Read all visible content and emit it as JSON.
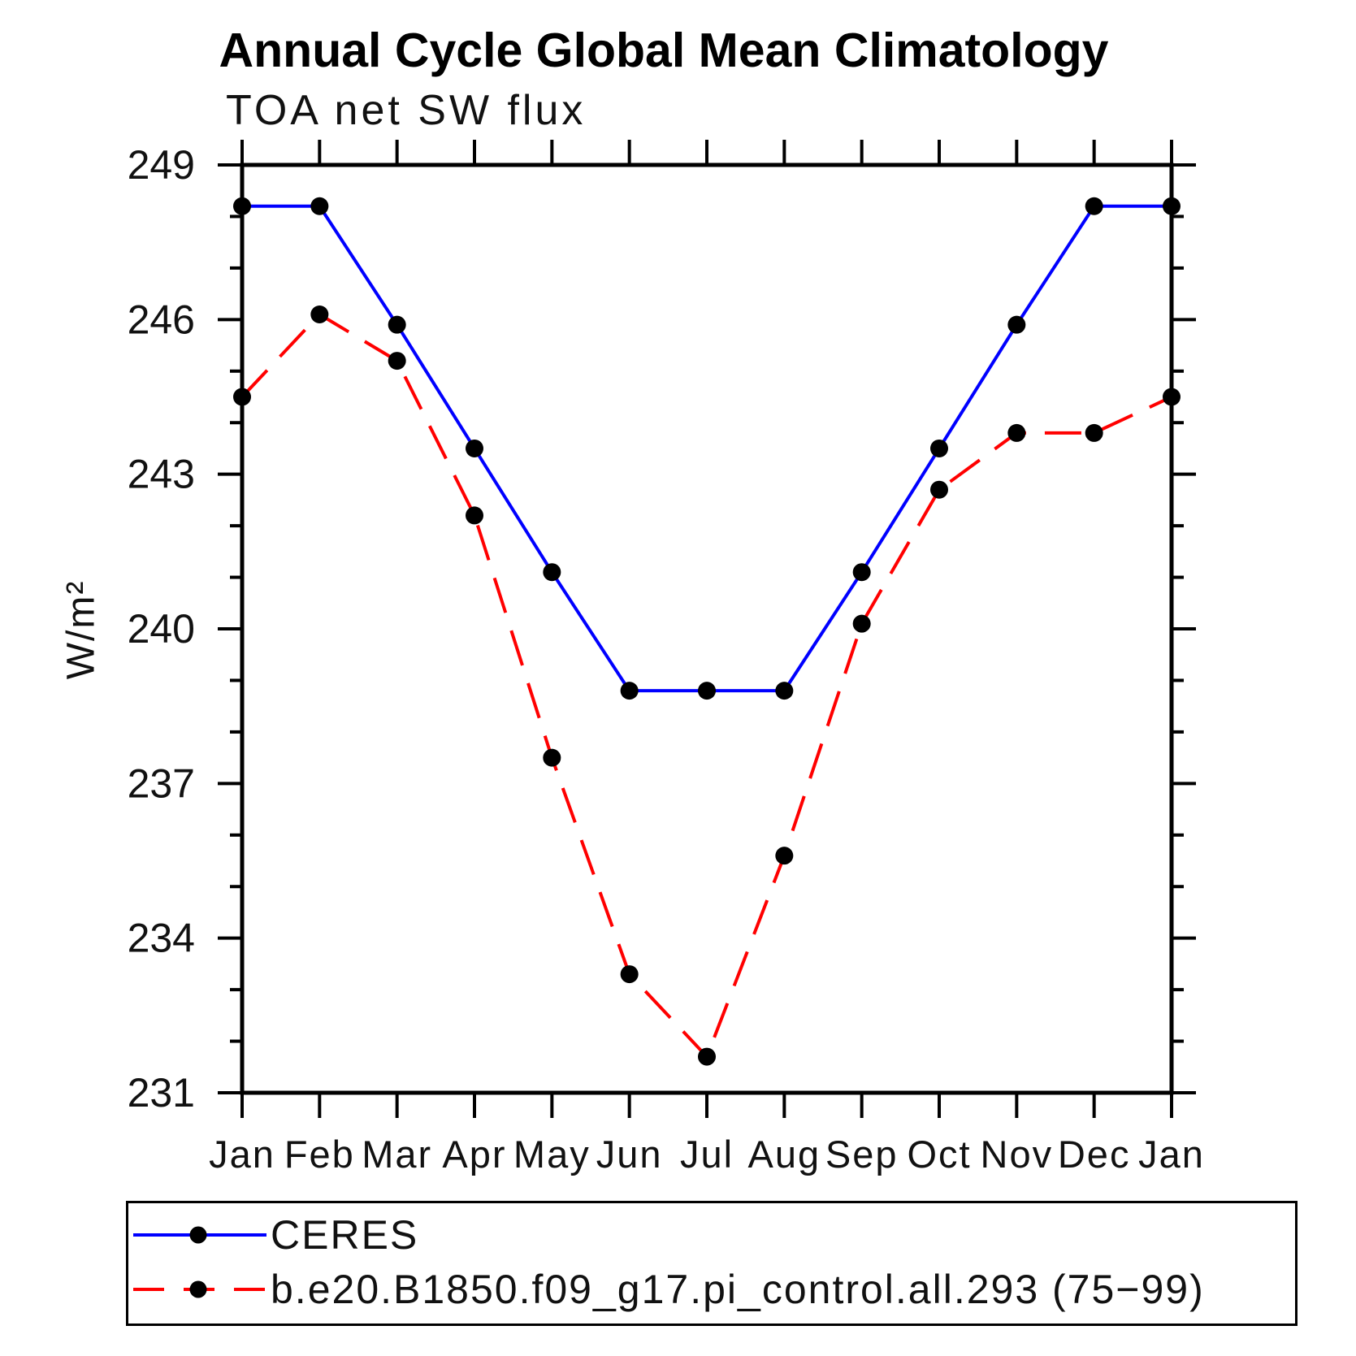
{
  "chart_data": {
    "type": "line",
    "title": "Annual Cycle Global Mean Climatology",
    "subtitle": "TOA net SW flux",
    "ylabel": "W/m²",
    "xlabel": "",
    "categories": [
      "Jan",
      "Feb",
      "Mar",
      "Apr",
      "May",
      "Jun",
      "Jul",
      "Aug",
      "Sep",
      "Oct",
      "Nov",
      "Dec",
      "Jan"
    ],
    "series": [
      {
        "name": "CERES",
        "line_color": "#0000ff",
        "line_style": "solid",
        "marker": "circle",
        "marker_color": "#000000",
        "values": [
          248.2,
          248.2,
          245.9,
          243.5,
          241.1,
          238.8,
          238.8,
          238.8,
          241.1,
          243.5,
          245.9,
          248.2,
          248.2
        ]
      },
      {
        "name": "b.e20.B1850.f09_g17.pi_control.all.293 (75−99)",
        "line_color": "#ff0000",
        "line_style": "dashed",
        "marker": "circle",
        "marker_color": "#000000",
        "values": [
          244.5,
          246.1,
          245.2,
          242.2,
          237.5,
          233.3,
          231.7,
          235.6,
          240.1,
          242.7,
          243.8,
          243.8,
          244.5
        ]
      }
    ],
    "ylim": [
      231,
      249
    ],
    "yticks": [
      231,
      234,
      237,
      240,
      243,
      246,
      249
    ],
    "y_minor_step": 1,
    "grid": false,
    "legend_position": "bottom",
    "axis_color": "#000000",
    "tick_style": "outward"
  }
}
